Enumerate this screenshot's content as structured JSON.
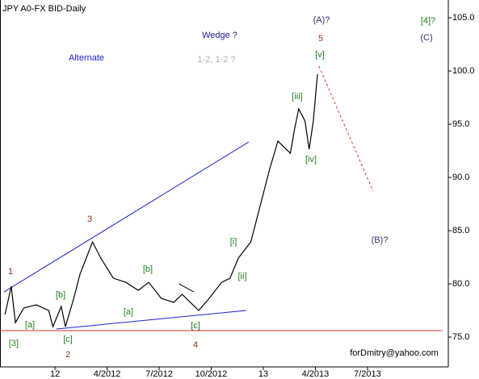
{
  "chart_data": {
    "type": "line",
    "title": "JPY A0-FX BID-Daily",
    "color": "#000000",
    "x": [
      2011.76,
      2011.79,
      2011.81,
      2011.85,
      2011.91,
      2011.97,
      2011.99,
      2012.03,
      2012.05,
      2012.09,
      2012.12,
      2012.18,
      2012.22,
      2012.28,
      2012.34,
      2012.4,
      2012.45,
      2012.51,
      2012.57,
      2012.61,
      2012.65,
      2012.69,
      2012.74,
      2012.8,
      2012.84,
      2012.88,
      2012.94,
      2012.96,
      2013.0,
      2013.03,
      2013.07,
      2013.11,
      2013.13,
      2013.15,
      2013.17,
      2013.2,
      2013.22,
      2013.24,
      2013.26
    ],
    "values": [
      77.12,
      79.77,
      76.36,
      77.73,
      78.03,
      77.5,
      75.98,
      77.88,
      75.98,
      78.64,
      80.91,
      83.94,
      82.42,
      80.53,
      80.15,
      79.39,
      80.15,
      78.64,
      78.26,
      79.02,
      78.26,
      77.5,
      78.64,
      80.15,
      80.53,
      82.42,
      83.94,
      85.45,
      88.48,
      90.76,
      93.41,
      92.65,
      92.27,
      94.55,
      96.44,
      95.3,
      92.65,
      95.3,
      99.7
    ],
    "xlim": [
      2011.736,
      2013.888
    ],
    "ylim": [
      72.2,
      106.67
    ],
    "xticks": [
      {
        "value": 2012.0,
        "label": "12"
      },
      {
        "value": 2012.25,
        "label": "4/2012"
      },
      {
        "value": 2012.5,
        "label": "7/2012"
      },
      {
        "value": 2012.75,
        "label": "10/2012"
      },
      {
        "value": 2013.0,
        "label": "13"
      },
      {
        "value": 2013.25,
        "label": "4/2013"
      },
      {
        "value": 2013.5,
        "label": "7/2013"
      }
    ],
    "yticks": [
      {
        "value": 75,
        "label": "75.0"
      },
      {
        "value": 80,
        "label": "80.0"
      },
      {
        "value": 85,
        "label": "85.0"
      },
      {
        "value": 90,
        "label": "90.0"
      },
      {
        "value": 95,
        "label": "95.0"
      },
      {
        "value": 100,
        "label": "100.0"
      },
      {
        "value": 105,
        "label": "105.0"
      }
    ],
    "trendlines": [
      {
        "x": [
          2011.755,
          2012.93
        ],
        "y": [
          79.24,
          93.33
        ],
        "color": "#2020d0",
        "dash": false
      },
      {
        "x": [
          2012.007,
          2012.918
        ],
        "y": [
          75.76,
          77.5
        ],
        "color": "#2020d0",
        "dash": false
      },
      {
        "x": [
          2011.736,
          2013.86
        ],
        "y": [
          75.61,
          75.61
        ],
        "color": "#e03030",
        "dash": false
      },
      {
        "x": [
          2013.267,
          2013.527
        ],
        "y": [
          100.45,
          88.71
        ],
        "color": "#e03030",
        "dash": true
      },
      {
        "x": [
          2012.596,
          2012.666
        ],
        "y": [
          80.0,
          79.24
        ],
        "color": "#000000",
        "dash": false
      }
    ],
    "annotations": [
      {
        "text": "Wedge ?",
        "color": "#1a1a8c"
      },
      {
        "text": "Alternate",
        "color": "#2020d0"
      },
      {
        "text": "1-2, 1-2 ?",
        "color": "#b0b0b0"
      },
      {
        "text": "(A)?",
        "color": "#303070"
      },
      {
        "text": "5",
        "color": "#a03020"
      },
      {
        "text": "[4]?",
        "color": "#208020"
      },
      {
        "text": "(C)",
        "color": "#303070"
      },
      {
        "text": "[v]",
        "color": "#208020"
      },
      {
        "text": "[iii]",
        "color": "#208020"
      },
      {
        "text": "[iv]",
        "color": "#208020"
      },
      {
        "text": "3",
        "color": "#8b2a1a"
      },
      {
        "text": "1",
        "color": "#8b2a1a"
      },
      {
        "text": "[3]",
        "color": "#208020"
      },
      {
        "text": "2",
        "color": "#8b2a1a"
      },
      {
        "text": "4",
        "color": "#8b2a1a"
      },
      {
        "text": "[a]",
        "color": "#208020"
      },
      {
        "text": "[b]",
        "color": "#208020"
      },
      {
        "text": "[c]",
        "color": "#208020"
      },
      {
        "text": "[a]",
        "color": "#208020"
      },
      {
        "text": "[b]",
        "color": "#208020"
      },
      {
        "text": "[c]",
        "color": "#208020"
      },
      {
        "text": "[i]",
        "color": "#208020"
      },
      {
        "text": "[ii]",
        "color": "#208020"
      },
      {
        "text": "(B)?",
        "color": "#303070"
      },
      {
        "text": "forDmitry@yahoo.com",
        "color": "#000000"
      }
    ]
  }
}
